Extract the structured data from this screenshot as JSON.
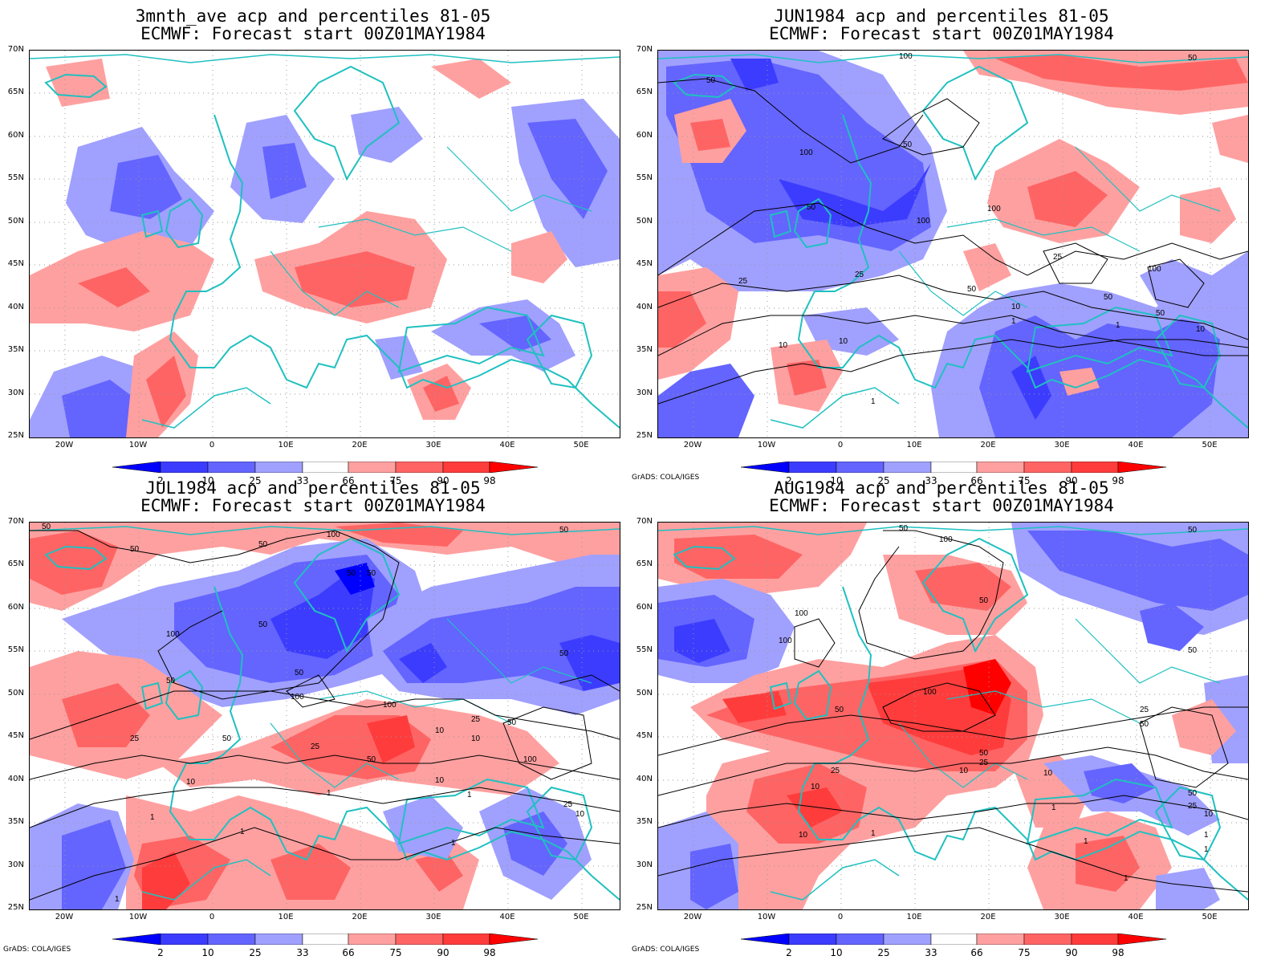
{
  "panels": [
    {
      "title_line1": "3mnth_ave acp and percentiles 81-05",
      "title_line2": "ECMWF: Forecast start 00Z01MAY1984",
      "credit": ""
    },
    {
      "title_line1": "JUN1984 acp and percentiles 81-05",
      "title_line2": "ECMWF: Forecast start 00Z01MAY1984",
      "credit": "GrADS: COLA/IGES"
    },
    {
      "title_line1": "JUL1984 acp and percentiles 81-05",
      "title_line2": "ECMWF: Forecast start 00Z01MAY1984",
      "credit": "GrADS: COLA/IGES"
    },
    {
      "title_line1": "AUG1984 acp and percentiles 81-05",
      "title_line2": "ECMWF: Forecast start 00Z01MAY1984",
      "credit": "GrADS: COLA/IGES"
    }
  ],
  "lat_ticks": [
    "70N",
    "65N",
    "60N",
    "55N",
    "50N",
    "45N",
    "40N",
    "35N",
    "30N",
    "25N"
  ],
  "lon_ticks": [
    "20W",
    "10W",
    "0",
    "10E",
    "20E",
    "30E",
    "40E",
    "50E"
  ],
  "colorbar": {
    "labels": [
      "2",
      "10",
      "25",
      "33",
      "66",
      "75",
      "90",
      "98"
    ],
    "colors": [
      "#0000ff",
      "#3c3cff",
      "#6464ff",
      "#a0a0ff",
      "#ffffff",
      "#ffa0a0",
      "#ff6464",
      "#ff3c3c",
      "#ff0000"
    ]
  },
  "colors": {
    "coastline": "#20c0c0",
    "contour": "#000000",
    "grid": "#999999"
  }
}
